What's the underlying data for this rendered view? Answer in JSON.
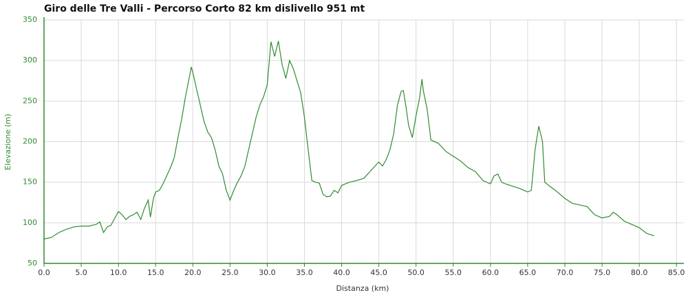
{
  "chart_data": {
    "type": "line",
    "title": "Giro delle Tre Valli - Percorso Corto 82 km dislivello 951 mt",
    "xlabel": "Distanza (km)",
    "ylabel": "Elevazione (m)",
    "x": [
      0,
      1,
      2,
      3,
      4,
      5,
      6,
      7,
      7.5,
      8,
      8.5,
      9,
      10,
      10.5,
      11,
      11.5,
      12,
      12.5,
      13,
      13.5,
      14,
      14.3,
      14.7,
      15,
      15.5,
      16,
      16.5,
      17,
      17.5,
      18,
      18.5,
      19,
      19.5,
      19.8,
      20,
      20.5,
      21,
      21.5,
      22,
      22.5,
      23,
      23.5,
      24,
      24.5,
      25,
      25.5,
      26,
      26.5,
      27,
      27.5,
      28,
      28.5,
      29,
      29.5,
      30,
      30.5,
      31,
      31.5,
      32,
      32.5,
      33,
      33.5,
      34,
      34.5,
      35,
      35.5,
      36,
      36.5,
      37,
      37.5,
      38,
      38.5,
      39,
      39.5,
      40,
      41,
      42,
      43,
      44,
      45,
      45.5,
      46,
      46.5,
      47,
      47.5,
      48,
      48.3,
      48.7,
      49,
      49.5,
      50,
      50.5,
      50.8,
      51,
      51.5,
      52,
      53,
      54,
      55,
      56,
      57,
      58,
      59,
      60,
      60.5,
      61,
      61.5,
      62,
      63,
      64,
      65,
      65.5,
      66,
      66.5,
      67,
      67.3,
      68,
      69,
      70,
      71,
      72,
      73,
      74,
      75,
      76,
      76.5,
      77,
      78,
      79,
      80,
      81,
      82
    ],
    "series": [
      {
        "name": "Elevazione",
        "color": "#2f8a2f",
        "values": [
          80,
          82,
          88,
          92,
          95,
          96,
          96,
          98,
          101,
          88,
          95,
          97,
          114,
          110,
          104,
          108,
          110,
          113,
          104,
          118,
          128,
          107,
          130,
          138,
          140,
          148,
          158,
          168,
          180,
          205,
          228,
          255,
          278,
          292,
          285,
          265,
          245,
          225,
          212,
          205,
          190,
          170,
          160,
          140,
          128,
          140,
          150,
          158,
          170,
          190,
          210,
          230,
          245,
          255,
          270,
          323,
          305,
          324,
          295,
          278,
          300,
          290,
          275,
          260,
          230,
          190,
          152,
          150,
          149,
          135,
          132,
          133,
          140,
          137,
          146,
          150,
          152,
          155,
          165,
          175,
          170,
          178,
          190,
          210,
          245,
          262,
          263,
          240,
          220,
          205,
          232,
          255,
          277,
          262,
          240,
          202,
          198,
          188,
          182,
          176,
          168,
          163,
          152,
          148,
          158,
          160,
          150,
          148,
          145,
          142,
          138,
          140,
          190,
          219,
          200,
          150,
          145,
          138,
          130,
          124,
          122,
          120,
          110,
          106,
          108,
          113,
          110,
          102,
          98,
          94,
          87,
          84
        ]
      }
    ],
    "xlim": [
      0,
      86
    ],
    "ylim": [
      50,
      350
    ],
    "xticks": [
      {
        "value": 0,
        "label": "0.0"
      },
      {
        "value": 5,
        "label": "5.0"
      },
      {
        "value": 10,
        "label": "10.0"
      },
      {
        "value": 15,
        "label": "15.0"
      },
      {
        "value": 20,
        "label": "20.0"
      },
      {
        "value": 25,
        "label": "25.0"
      },
      {
        "value": 30,
        "label": "30.0"
      },
      {
        "value": 35,
        "label": "35.0"
      },
      {
        "value": 40,
        "label": "40.0"
      },
      {
        "value": 45,
        "label": "45.0"
      },
      {
        "value": 50,
        "label": "50.0"
      },
      {
        "value": 55,
        "label": "55.0"
      },
      {
        "value": 60,
        "label": "60.0"
      },
      {
        "value": 65,
        "label": "65.0"
      },
      {
        "value": 70,
        "label": "70.0"
      },
      {
        "value": 75,
        "label": "75.0"
      },
      {
        "value": 80,
        "label": "80.0"
      },
      {
        "value": 85,
        "label": "85.0"
      }
    ],
    "yticks": [
      50,
      100,
      150,
      200,
      250,
      300,
      350
    ],
    "grid": true
  }
}
